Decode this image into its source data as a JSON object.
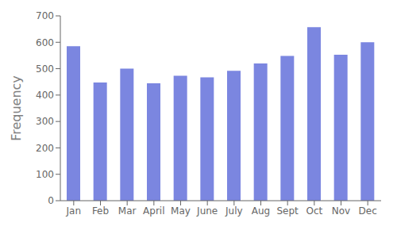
{
  "chart_data": {
    "type": "bar",
    "ylabel": "Frequency",
    "categories": [
      "Jan",
      "Feb",
      "Mar",
      "April",
      "May",
      "June",
      "July",
      "Aug",
      "Sept",
      "Oct",
      "Nov",
      "Dec"
    ],
    "values": [
      585,
      448,
      500,
      445,
      473,
      467,
      492,
      520,
      548,
      657,
      553,
      600
    ],
    "color": "#7B86E0",
    "ylim": [
      0,
      700
    ],
    "yticks": [
      0,
      100,
      200,
      300,
      400,
      500,
      600,
      700
    ],
    "grid": false
  }
}
